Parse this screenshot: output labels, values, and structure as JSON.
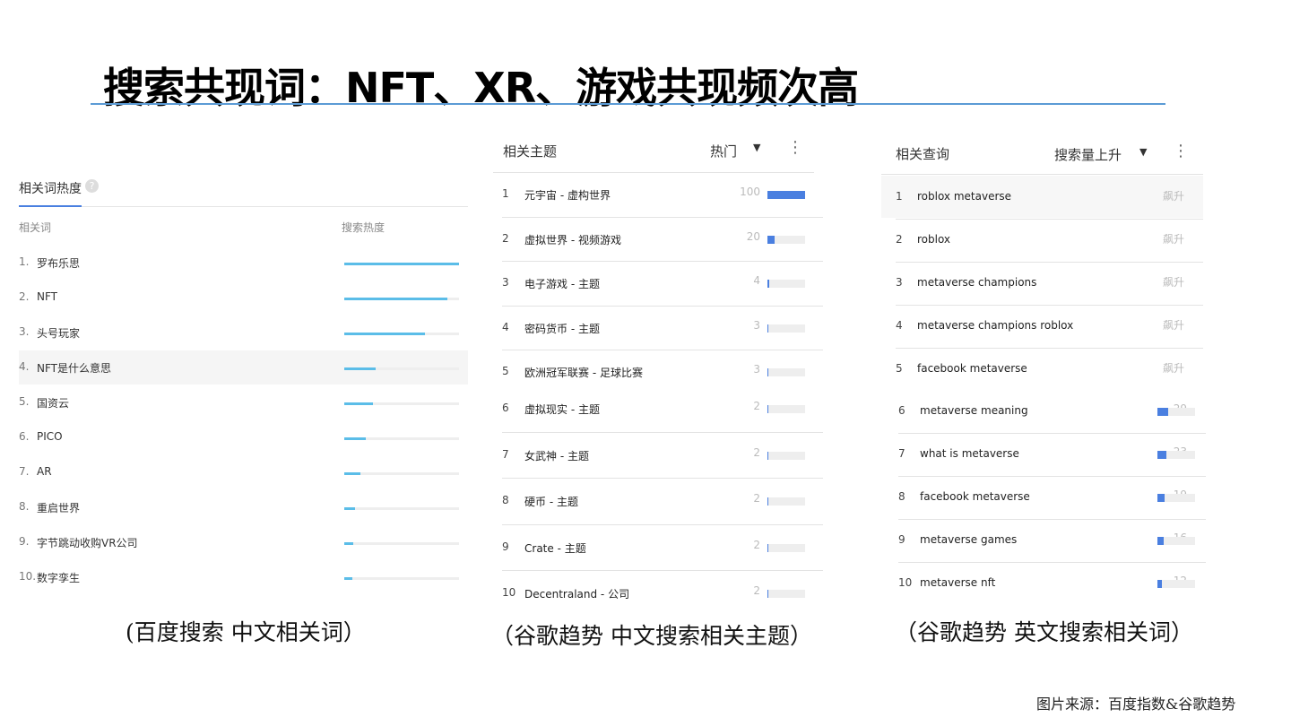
{
  "title": "搜索共现词：NFT、XR、游戏共现频次高",
  "source": "图片来源：百度指数&谷歌趋势",
  "colors": {
    "baidu_bar": "#5bbde8",
    "google_bar": "#4a7fe0",
    "track": "#eeeeee",
    "title_rule": "#5b9bd5"
  },
  "baidu": {
    "caption": "(百度搜索 中文相关词）",
    "tab": "相关词热度",
    "help_icon": "question-circle-icon",
    "col_word": "相关词",
    "col_heat": "搜索热度",
    "rows": [
      {
        "rank": "1.",
        "word": "罗布乐思",
        "heat": 1.0
      },
      {
        "rank": "2.",
        "word": "NFT",
        "heat": 0.9
      },
      {
        "rank": "3.",
        "word": "头号玩家",
        "heat": 0.7
      },
      {
        "rank": "4.",
        "word": "NFT是什么意思",
        "heat": 0.27
      },
      {
        "rank": "5.",
        "word": "国资云",
        "heat": 0.25
      },
      {
        "rank": "6.",
        "word": "PICO",
        "heat": 0.19
      },
      {
        "rank": "7.",
        "word": "AR",
        "heat": 0.14
      },
      {
        "rank": "8.",
        "word": "重启世界",
        "heat": 0.09
      },
      {
        "rank": "9.",
        "word": "字节跳动收购VR公司",
        "heat": 0.08
      },
      {
        "rank": "10.",
        "word": "数字孪生",
        "heat": 0.07
      }
    ]
  },
  "topics": {
    "caption": "（谷歌趋势 中文搜索相关主题）",
    "header": "相关主题",
    "sort": "热门",
    "rows": [
      {
        "rank": "1",
        "label": "元宇宙 - 虚构世界",
        "value": "100",
        "v": 100
      },
      {
        "rank": "2",
        "label": "虚拟世界 - 视频游戏",
        "value": "20",
        "v": 20
      },
      {
        "rank": "3",
        "label": "电子游戏 - 主题",
        "value": "4",
        "v": 4
      },
      {
        "rank": "4",
        "label": "密码货币 - 主题",
        "value": "3",
        "v": 3
      },
      {
        "rank": "5",
        "label": "欧洲冠军联赛 - 足球比赛",
        "value": "3",
        "v": 3
      },
      {
        "rank": "6",
        "label": "虚拟现实 - 主题",
        "value": "2",
        "v": 2
      },
      {
        "rank": "7",
        "label": "女武神 - 主题",
        "value": "2",
        "v": 2
      },
      {
        "rank": "8",
        "label": "硬币 - 主题",
        "value": "2",
        "v": 2
      },
      {
        "rank": "9",
        "label": "Crate - 主题",
        "value": "2",
        "v": 2
      },
      {
        "rank": "10",
        "label": "Decentraland - 公司",
        "value": "2",
        "v": 2
      }
    ]
  },
  "queries": {
    "caption": "（谷歌趋势 英文搜索相关词）",
    "header": "相关查询",
    "sort": "搜索量上升",
    "rows": [
      {
        "rank": "1",
        "label": "roblox metaverse",
        "value": "飙升",
        "v": null
      },
      {
        "rank": "2",
        "label": "roblox",
        "value": "飙升",
        "v": null
      },
      {
        "rank": "3",
        "label": "metaverse champions",
        "value": "飙升",
        "v": null
      },
      {
        "rank": "4",
        "label": "metaverse champions roblox",
        "value": "飙升",
        "v": null
      },
      {
        "rank": "5",
        "label": "facebook metaverse",
        "value": "飙升",
        "v": null
      },
      {
        "rank": "6",
        "label": "metaverse meaning",
        "value": "29",
        "v": 29
      },
      {
        "rank": "7",
        "label": "what is metaverse",
        "value": "23",
        "v": 23
      },
      {
        "rank": "8",
        "label": "facebook metaverse",
        "value": "19",
        "v": 19
      },
      {
        "rank": "9",
        "label": "metaverse games",
        "value": "16",
        "v": 16
      },
      {
        "rank": "10",
        "label": "metaverse nft",
        "value": "12",
        "v": 12
      }
    ]
  }
}
